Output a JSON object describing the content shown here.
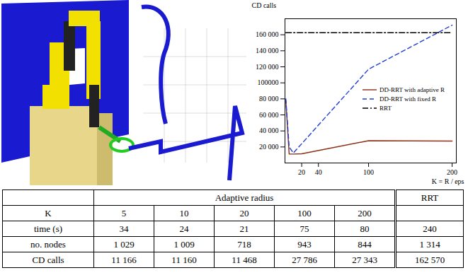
{
  "chart_data": {
    "type": "line",
    "y_label": "CD calls",
    "x_label": "K = R / eps",
    "x": [
      1,
      5,
      10,
      20,
      100,
      200
    ],
    "series": [
      {
        "name": "DD-RRT with adaptive R",
        "color": "#8b2e16",
        "line_style": "solid",
        "values": [
          78000,
          11166,
          11160,
          11468,
          27786,
          27343
        ]
      },
      {
        "name": "DD-RRT with fixed R",
        "color": "#1f3fd6",
        "line_style": "dashed",
        "values": [
          80000,
          20000,
          12500,
          24000,
          117000,
          172000
        ]
      },
      {
        "name": "RRT",
        "color": "#000000",
        "line_style": "dashdot",
        "values": [
          162570,
          162570,
          162570,
          162570,
          162570,
          162570
        ]
      }
    ],
    "xlim": [
      0,
      205
    ],
    "xticks": [
      20,
      40,
      100,
      200
    ],
    "ylim": [
      0,
      180000
    ],
    "yticks": [
      {
        "value": 20000,
        "label": "20 000"
      },
      {
        "value": 40000,
        "label": "40 000"
      },
      {
        "value": 60000,
        "label": "60 000"
      },
      {
        "value": 80000,
        "label": "80 000"
      },
      {
        "value": 100000,
        "label": "100000"
      },
      {
        "value": 120000,
        "label": "120 000"
      },
      {
        "value": 140000,
        "label": "140 000"
      },
      {
        "value": 160000,
        "label": "160 000"
      }
    ],
    "grid": false,
    "legend": "right"
  },
  "table": {
    "header": {
      "group": "Adaptive radius",
      "baseline": "RRT"
    },
    "rows": [
      [
        "K",
        "5",
        "10",
        "20",
        "100",
        "200",
        null
      ],
      [
        "time (s)",
        "34",
        "24",
        "21",
        "75",
        "80",
        "240"
      ],
      [
        "no. nodes",
        "1 029",
        "1 009",
        "718",
        "943",
        "844",
        "1 314"
      ],
      [
        "CD calls",
        "11 166",
        "11 160",
        "11 468",
        "27 786",
        "27 343",
        "162 570"
      ]
    ]
  }
}
